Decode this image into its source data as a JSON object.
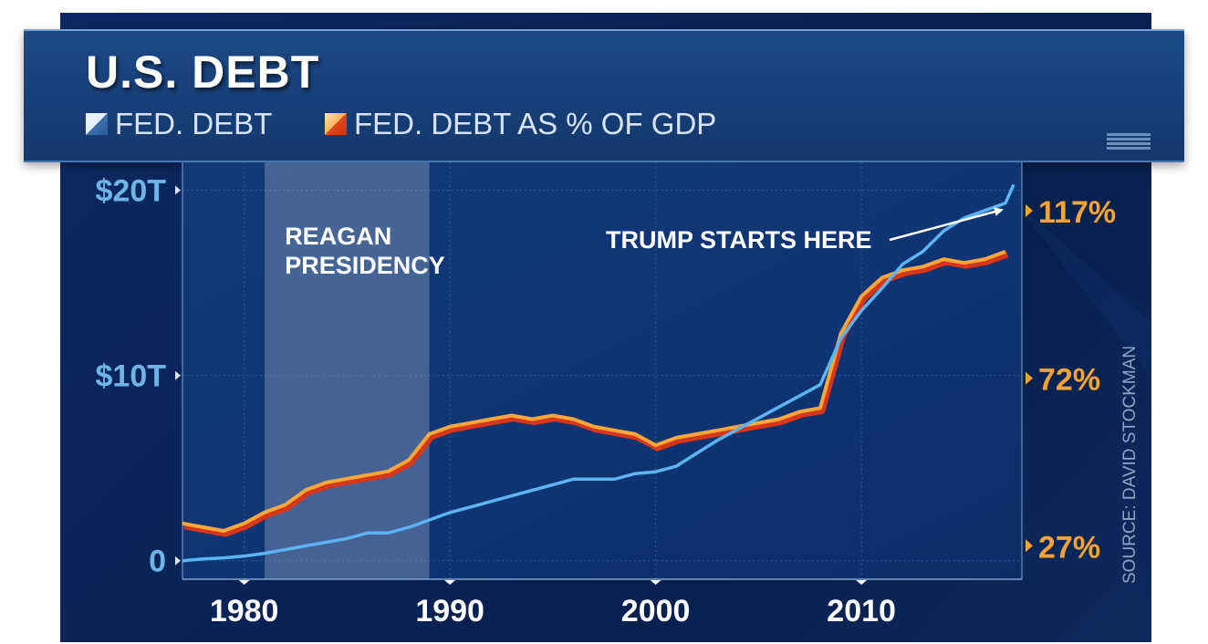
{
  "chart_data": {
    "type": "line",
    "title": "U.S. DEBT",
    "legend": [
      "FED. DEBT",
      "FED. DEBT AS % OF GDP"
    ],
    "x_ticks": [
      "1980",
      "1990",
      "2000",
      "2010"
    ],
    "left_axis_ticks": [
      "$20T",
      "$10T",
      "0"
    ],
    "right_axis_ticks": [
      "117%",
      "72%",
      "27%"
    ],
    "xlim": [
      1977,
      2017.8
    ],
    "left_ylim": [
      -1,
      21.5
    ],
    "right_ylim": [
      18,
      130
    ],
    "shaded_region": {
      "label": "REAGAN PRESIDENCY",
      "x_start": 1981,
      "x_end": 1989
    },
    "annotation": {
      "text": "TRUMP STARTS HERE",
      "points_to_year": 2017.4
    },
    "source": "SOURCE: DAVID STOCKMAN",
    "series": [
      {
        "name": "FED. DEBT",
        "unit": "trillions USD",
        "color": "#5cb4f2",
        "x": [
          1977,
          1978,
          1979,
          1980,
          1981,
          1982,
          1983,
          1984,
          1985,
          1986,
          1987,
          1988,
          1989,
          1990,
          1991,
          1992,
          1993,
          1994,
          1995,
          1996,
          1997,
          1998,
          1999,
          2000,
          2001,
          2002,
          2003,
          2004,
          2005,
          2006,
          2007,
          2008,
          2009,
          2010,
          2011,
          2012,
          2013,
          2014,
          2015,
          2016,
          2017,
          2017.4
        ],
        "values": [
          0.0,
          0.1,
          0.15,
          0.25,
          0.4,
          0.6,
          0.8,
          1.0,
          1.2,
          1.5,
          1.5,
          1.8,
          2.2,
          2.6,
          2.9,
          3.2,
          3.5,
          3.8,
          4.1,
          4.4,
          4.4,
          4.4,
          4.7,
          4.8,
          5.1,
          5.8,
          6.5,
          7.1,
          7.7,
          8.3,
          8.9,
          9.5,
          12.0,
          13.5,
          14.7,
          16.0,
          16.7,
          17.8,
          18.5,
          18.9,
          19.3,
          20.3
        ]
      },
      {
        "name": "FED. DEBT AS % OF GDP",
        "unit": "percent",
        "color": "#f9a73a",
        "shadow_color": "#d8361a",
        "x": [
          1977,
          1978,
          1979,
          1980,
          1981,
          1982,
          1983,
          1984,
          1985,
          1986,
          1987,
          1988,
          1989,
          1990,
          1991,
          1992,
          1993,
          1994,
          1995,
          1996,
          1997,
          1998,
          1999,
          2000,
          2001,
          2002,
          2003,
          2004,
          2005,
          2006,
          2007,
          2008,
          2009,
          2010,
          2011,
          2012,
          2013,
          2014,
          2015,
          2016,
          2017
        ],
        "values": [
          33,
          32,
          31,
          33,
          36,
          38,
          42,
          44,
          45,
          46,
          47,
          50,
          57,
          59,
          60,
          61,
          62,
          61,
          62,
          61,
          59,
          58,
          57,
          54,
          56,
          57,
          58,
          59,
          60,
          61,
          63,
          64,
          84,
          94,
          99,
          101,
          102,
          104,
          103,
          104,
          106
        ]
      }
    ]
  }
}
